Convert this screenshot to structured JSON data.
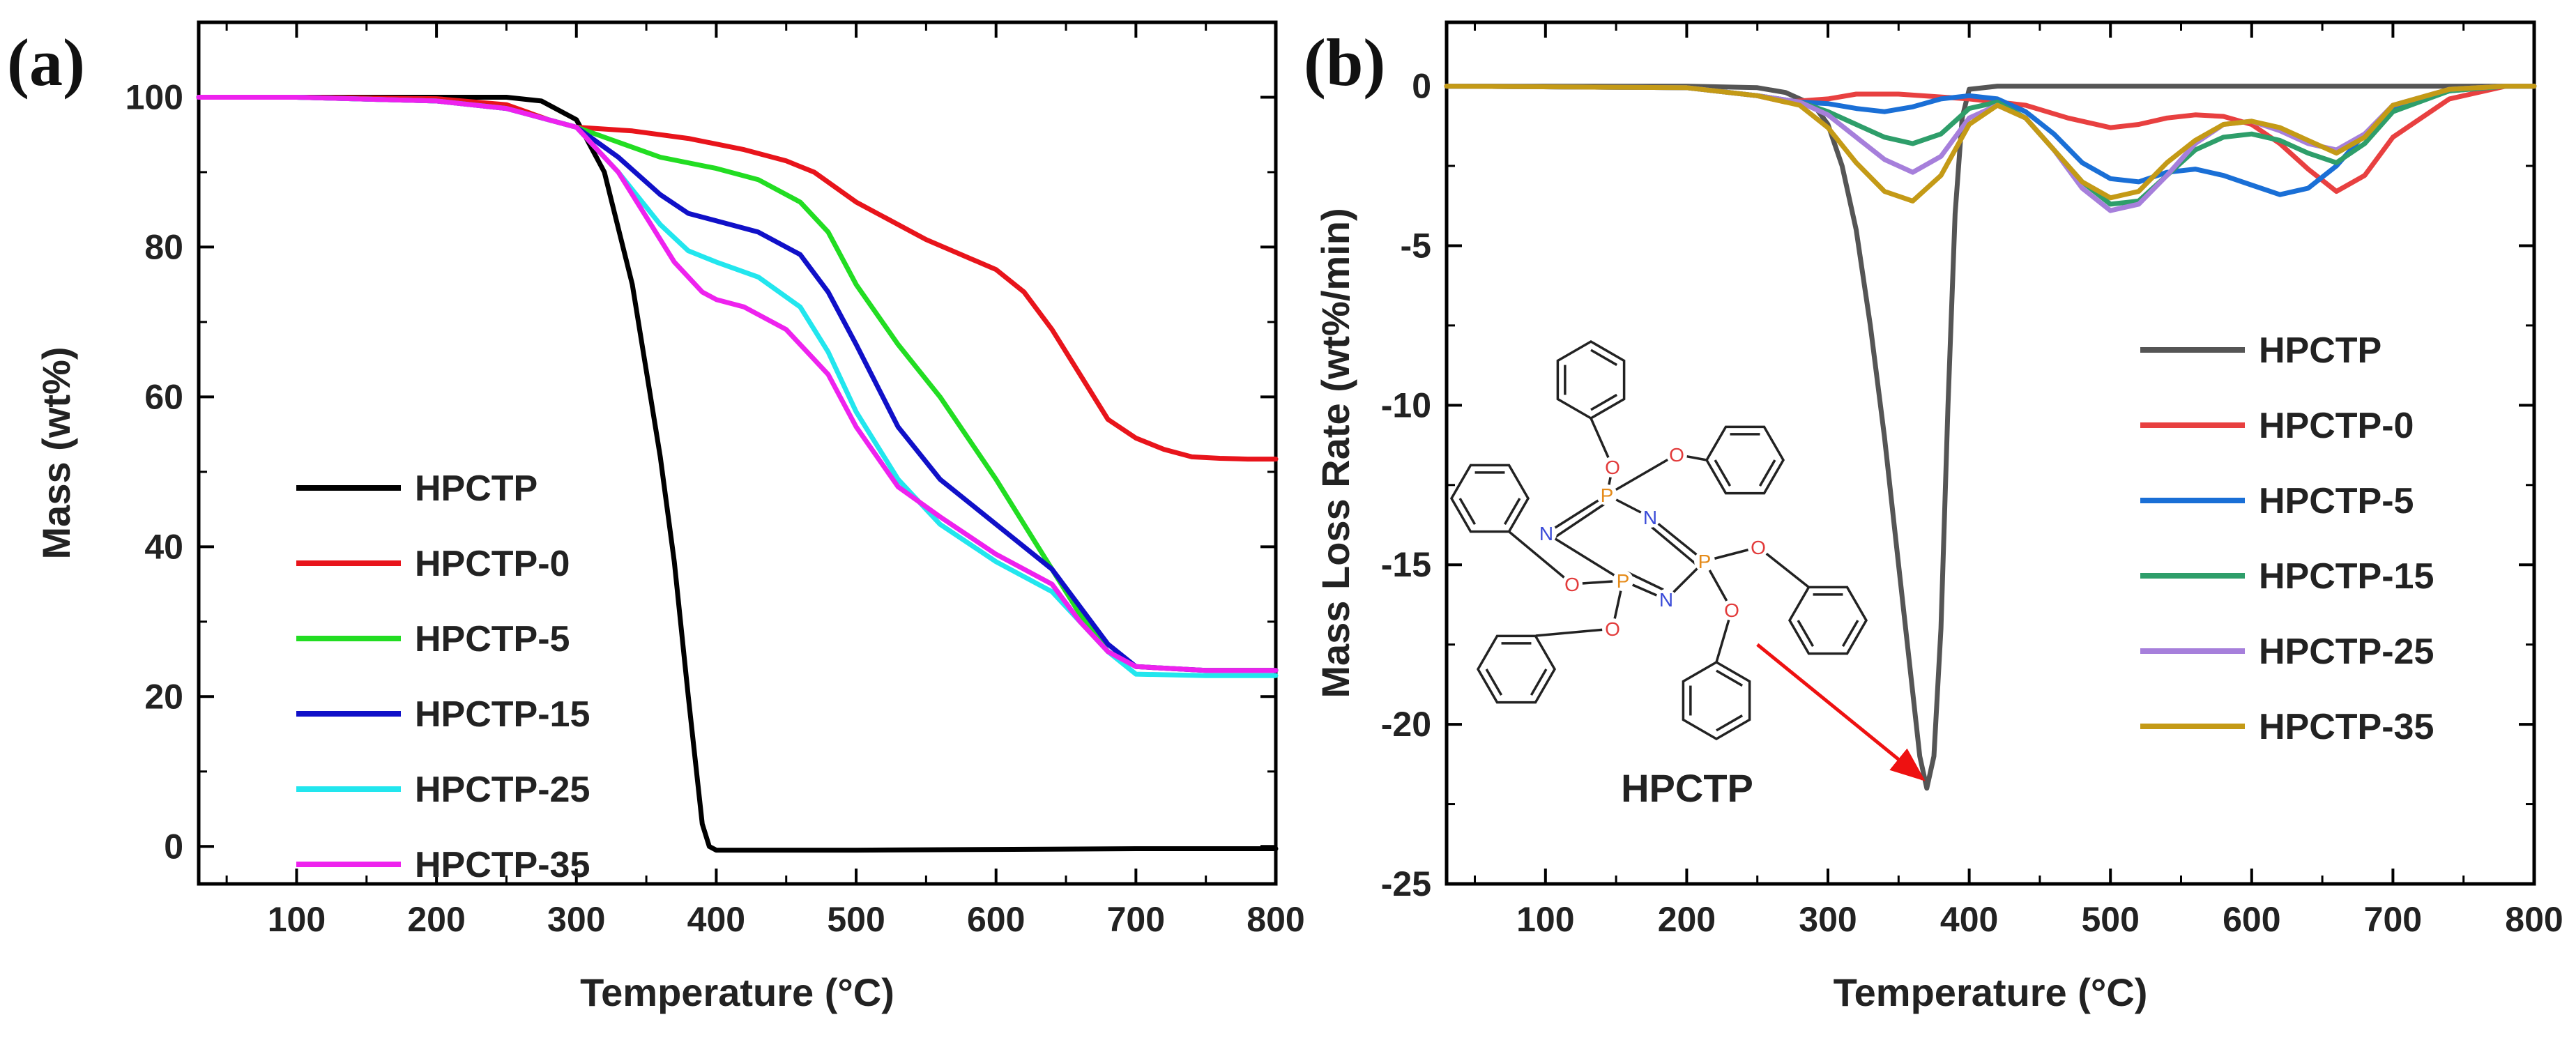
{
  "chart_data": [
    {
      "panel_label": "(a)",
      "type": "line",
      "xlabel": "Temperature (°C)",
      "ylabel": "Mass (wt%)",
      "xlim": [
        30,
        800
      ],
      "ylim": [
        -5,
        110
      ],
      "xticks": [
        100,
        200,
        300,
        400,
        500,
        600,
        700,
        800
      ],
      "yticks": [
        0,
        20,
        40,
        60,
        80,
        100
      ],
      "legend_position": "lower-left",
      "series": [
        {
          "name": "HPCTP",
          "color": "#000000",
          "x": [
            30,
            100,
            200,
            250,
            275,
            300,
            320,
            340,
            360,
            370,
            380,
            390,
            395,
            400,
            420,
            450,
            500,
            600,
            700,
            800
          ],
          "y": [
            100,
            100,
            100,
            100,
            99.5,
            97,
            90,
            75,
            52,
            38,
            20,
            3,
            0,
            -0.5,
            -0.5,
            -0.5,
            -0.5,
            -0.4,
            -0.3,
            -0.3
          ]
        },
        {
          "name": "HPCTP-0",
          "color": "#e8141b",
          "x": [
            30,
            100,
            200,
            250,
            280,
            300,
            340,
            380,
            420,
            450,
            470,
            500,
            550,
            600,
            620,
            640,
            660,
            680,
            700,
            720,
            740,
            760,
            780,
            800
          ],
          "y": [
            100,
            100,
            99.8,
            99,
            97,
            96,
            95.5,
            94.5,
            93,
            91.5,
            90,
            86,
            81,
            77,
            74,
            69,
            63,
            57,
            54.5,
            53,
            52,
            51.8,
            51.7,
            51.7
          ]
        },
        {
          "name": "HPCTP-5",
          "color": "#22dd22",
          "x": [
            30,
            100,
            200,
            250,
            280,
            300,
            330,
            360,
            400,
            430,
            460,
            480,
            500,
            530,
            560,
            600,
            640,
            660,
            680,
            700,
            750,
            800
          ],
          "y": [
            100,
            100,
            99.5,
            98.5,
            97,
            96,
            94,
            92,
            90.5,
            89,
            86,
            82,
            75,
            67,
            60,
            49,
            37,
            31,
            26,
            24,
            23.5,
            23.5
          ]
        },
        {
          "name": "HPCTP-15",
          "color": "#1010c8",
          "x": [
            30,
            100,
            200,
            250,
            280,
            300,
            330,
            360,
            380,
            400,
            430,
            460,
            480,
            500,
            530,
            560,
            600,
            640,
            660,
            680,
            700,
            750,
            800
          ],
          "y": [
            100,
            100,
            99.5,
            98.5,
            97,
            96,
            92,
            87,
            84.5,
            83.5,
            82,
            79,
            74,
            67,
            56,
            49,
            43,
            37,
            32,
            27,
            24,
            23.5,
            23.5
          ]
        },
        {
          "name": "HPCTP-25",
          "color": "#22e6ee",
          "x": [
            30,
            100,
            200,
            250,
            280,
            300,
            330,
            360,
            380,
            400,
            430,
            460,
            480,
            500,
            530,
            560,
            600,
            640,
            660,
            680,
            700,
            750,
            800
          ],
          "y": [
            100,
            100,
            99.5,
            98.5,
            97,
            96,
            90,
            83,
            79.5,
            78,
            76,
            72,
            66,
            58,
            49,
            43,
            38,
            34,
            30,
            26,
            23,
            22.8,
            22.8
          ]
        },
        {
          "name": "HPCTP-35",
          "color": "#ee22ee",
          "x": [
            30,
            100,
            200,
            250,
            280,
            300,
            330,
            350,
            370,
            390,
            400,
            420,
            450,
            480,
            500,
            530,
            560,
            600,
            640,
            660,
            680,
            700,
            750,
            800
          ],
          "y": [
            100,
            100,
            99.5,
            98.5,
            97,
            96,
            90,
            84,
            78,
            74,
            73,
            72,
            69,
            63,
            56,
            48,
            44,
            39,
            35,
            30,
            26,
            24,
            23.5,
            23.5
          ]
        }
      ]
    },
    {
      "panel_label": "(b)",
      "type": "line",
      "xlabel": "Temperature (°C)",
      "ylabel": "Mass Loss Rate (wt%/min)",
      "xlim": [
        30,
        800
      ],
      "ylim": [
        -25,
        2
      ],
      "xticks": [
        100,
        200,
        300,
        400,
        500,
        600,
        700,
        800
      ],
      "yticks": [
        0,
        -5,
        -10,
        -15,
        -20,
        -25
      ],
      "legend_position": "right",
      "annotation": {
        "text": "HPCTP",
        "arrow_from": [
          250,
          -17.5
        ],
        "arrow_to": [
          370,
          -21.8
        ]
      },
      "molecule": {
        "atoms": [
          "P",
          "N",
          "O"
        ]
      },
      "series": [
        {
          "name": "HPCTP",
          "color": "#555555",
          "x": [
            30,
            200,
            250,
            270,
            290,
            300,
            310,
            320,
            330,
            340,
            350,
            360,
            365,
            370,
            375,
            380,
            385,
            390,
            395,
            400,
            420,
            500,
            600,
            700,
            800
          ],
          "y": [
            0,
            0,
            -0.05,
            -0.2,
            -0.6,
            -1.2,
            -2.5,
            -4.5,
            -7.5,
            -11,
            -15,
            -19,
            -21,
            -22,
            -21,
            -17,
            -10,
            -4,
            -1,
            -0.1,
            0,
            0,
            0,
            0,
            0
          ]
        },
        {
          "name": "HPCTP-0",
          "color": "#e84040",
          "x": [
            30,
            200,
            250,
            270,
            300,
            320,
            350,
            400,
            440,
            470,
            500,
            520,
            540,
            560,
            580,
            600,
            620,
            640,
            660,
            680,
            700,
            740,
            780,
            800
          ],
          "y": [
            0,
            -0.05,
            -0.3,
            -0.5,
            -0.4,
            -0.25,
            -0.25,
            -0.4,
            -0.6,
            -1.0,
            -1.3,
            -1.2,
            -1.0,
            -0.9,
            -0.95,
            -1.2,
            -1.8,
            -2.6,
            -3.3,
            -2.8,
            -1.6,
            -0.4,
            0,
            0
          ]
        },
        {
          "name": "HPCTP-5",
          "color": "#1a6fd6",
          "x": [
            30,
            200,
            250,
            280,
            300,
            320,
            340,
            360,
            380,
            400,
            420,
            440,
            460,
            480,
            500,
            520,
            540,
            560,
            580,
            600,
            620,
            640,
            660,
            680,
            700,
            740,
            780,
            800
          ],
          "y": [
            0,
            -0.05,
            -0.3,
            -0.5,
            -0.55,
            -0.7,
            -0.8,
            -0.65,
            -0.4,
            -0.3,
            -0.4,
            -0.8,
            -1.5,
            -2.4,
            -2.9,
            -3.0,
            -2.7,
            -2.6,
            -2.8,
            -3.1,
            -3.4,
            -3.2,
            -2.5,
            -1.5,
            -0.7,
            -0.15,
            0,
            0
          ]
        },
        {
          "name": "HPCTP-15",
          "color": "#2e9e6a",
          "x": [
            30,
            200,
            250,
            280,
            300,
            320,
            340,
            360,
            380,
            400,
            420,
            440,
            460,
            480,
            500,
            520,
            540,
            560,
            580,
            600,
            620,
            640,
            660,
            680,
            700,
            740,
            780,
            800
          ],
          "y": [
            0,
            -0.05,
            -0.3,
            -0.5,
            -0.8,
            -1.2,
            -1.6,
            -1.8,
            -1.5,
            -0.7,
            -0.5,
            -1.0,
            -2.0,
            -3.0,
            -3.7,
            -3.6,
            -2.8,
            -2.0,
            -1.6,
            -1.5,
            -1.7,
            -2.1,
            -2.4,
            -1.8,
            -0.8,
            -0.15,
            0,
            0
          ]
        },
        {
          "name": "HPCTP-25",
          "color": "#a67fdb",
          "x": [
            30,
            200,
            250,
            280,
            300,
            320,
            340,
            360,
            380,
            400,
            420,
            440,
            460,
            480,
            500,
            520,
            540,
            560,
            580,
            600,
            620,
            640,
            660,
            680,
            700,
            740,
            780,
            800
          ],
          "y": [
            0,
            -0.05,
            -0.3,
            -0.5,
            -0.9,
            -1.6,
            -2.3,
            -2.7,
            -2.2,
            -1.0,
            -0.6,
            -1.0,
            -2.0,
            -3.2,
            -3.9,
            -3.7,
            -2.8,
            -1.8,
            -1.2,
            -1.1,
            -1.4,
            -1.8,
            -2.0,
            -1.5,
            -0.6,
            -0.1,
            0,
            0
          ]
        },
        {
          "name": "HPCTP-35",
          "color": "#c49a16",
          "x": [
            30,
            200,
            250,
            280,
            300,
            320,
            340,
            360,
            380,
            400,
            420,
            440,
            460,
            480,
            500,
            520,
            540,
            560,
            580,
            600,
            620,
            640,
            660,
            680,
            700,
            740,
            780,
            800
          ],
          "y": [
            0,
            -0.05,
            -0.3,
            -0.6,
            -1.3,
            -2.4,
            -3.3,
            -3.6,
            -2.8,
            -1.2,
            -0.6,
            -1.0,
            -2.0,
            -3.0,
            -3.5,
            -3.3,
            -2.4,
            -1.7,
            -1.2,
            -1.1,
            -1.3,
            -1.7,
            -2.1,
            -1.6,
            -0.6,
            -0.1,
            0,
            0
          ]
        }
      ]
    }
  ]
}
